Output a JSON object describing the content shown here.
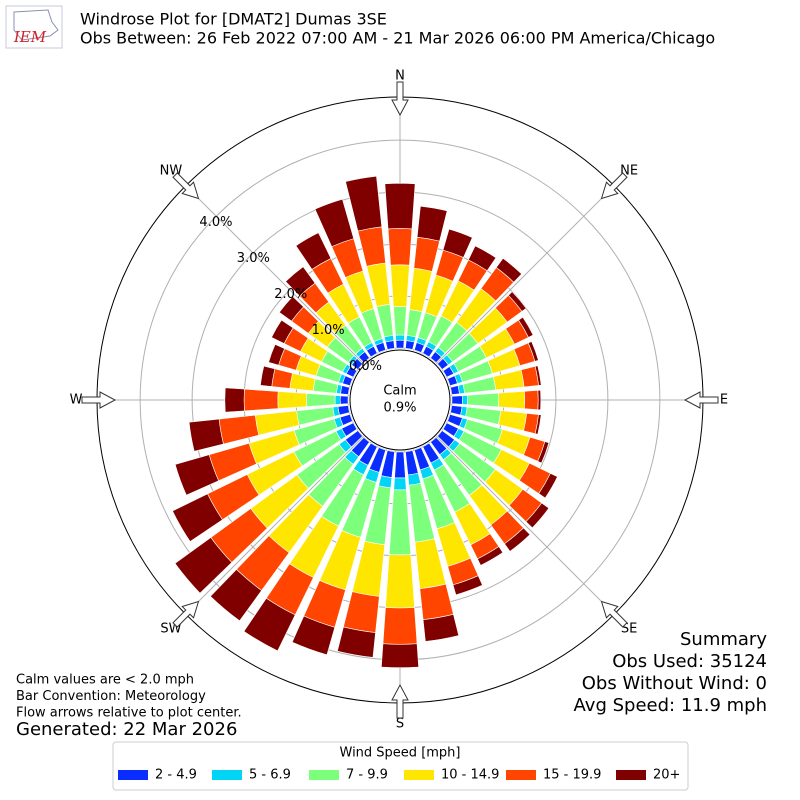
{
  "chart_data": {
    "type": "windrose",
    "logo_text": "IEM",
    "title": "Windrose Plot for [DMAT2] Dumas 3SE",
    "subtitle": "Obs Between: 26 Feb 2022 07:00 AM - 21 Mar 2026 06:00 PM America/Chicago",
    "x": [
      0,
      10,
      20,
      30,
      40,
      50,
      60,
      70,
      80,
      90,
      100,
      110,
      120,
      130,
      140,
      150,
      160,
      170,
      180,
      190,
      200,
      210,
      220,
      230,
      240,
      250,
      260,
      270,
      280,
      290,
      300,
      310,
      320,
      330,
      340,
      350
    ],
    "theta_ticks": [
      {
        "value": 0,
        "label": "N"
      },
      {
        "value": 45,
        "label": "NE"
      },
      {
        "value": 90,
        "label": "E"
      },
      {
        "value": 135,
        "label": "SE"
      },
      {
        "value": 180,
        "label": "S"
      },
      {
        "value": 225,
        "label": "SW"
      },
      {
        "value": 270,
        "label": "W"
      },
      {
        "value": 315,
        "label": "NW"
      }
    ],
    "rlim": [
      0,
      4.83
    ],
    "rticks": [
      {
        "value": 0,
        "label": "0.0%"
      },
      {
        "value": 1,
        "label": "1.0%"
      },
      {
        "value": 2,
        "label": "2.0%"
      },
      {
        "value": 3,
        "label": "3.0%"
      },
      {
        "value": 4,
        "label": "4.0%"
      }
    ],
    "calm": {
      "label": "Calm",
      "value": 0.9,
      "value_label": "0.9%"
    },
    "legend_title": "Wind Speed [mph]",
    "series": [
      {
        "name": "2 - 4.9",
        "color": "#0a2dff",
        "values": [
          0.15,
          0.15,
          0.15,
          0.15,
          0.15,
          0.15,
          0.15,
          0.15,
          0.15,
          0.2,
          0.2,
          0.25,
          0.25,
          0.3,
          0.3,
          0.35,
          0.4,
          0.45,
          0.5,
          0.5,
          0.45,
          0.4,
          0.35,
          0.3,
          0.25,
          0.2,
          0.2,
          0.15,
          0.15,
          0.15,
          0.15,
          0.15,
          0.15,
          0.15,
          0.15,
          0.15
        ]
      },
      {
        "name": "5 - 6.9",
        "color": "#00d5f5",
        "values": [
          0.1,
          0.1,
          0.1,
          0.1,
          0.1,
          0.1,
          0.1,
          0.1,
          0.1,
          0.1,
          0.1,
          0.1,
          0.12,
          0.12,
          0.12,
          0.15,
          0.18,
          0.2,
          0.23,
          0.2,
          0.2,
          0.2,
          0.18,
          0.15,
          0.12,
          0.12,
          0.1,
          0.1,
          0.08,
          0.08,
          0.08,
          0.08,
          0.08,
          0.08,
          0.08,
          0.1
        ]
      },
      {
        "name": "7 - 9.9",
        "color": "#7cff7a",
        "values": [
          0.55,
          0.5,
          0.5,
          0.55,
          0.6,
          0.6,
          0.6,
          0.6,
          0.6,
          0.6,
          0.65,
          0.7,
          0.8,
          0.85,
          0.85,
          0.9,
          1.0,
          1.1,
          1.25,
          1.1,
          1.1,
          1.1,
          1.0,
          1.0,
          0.9,
          0.8,
          0.7,
          0.55,
          0.45,
          0.45,
          0.45,
          0.5,
          0.55,
          0.55,
          0.6,
          0.6
        ]
      },
      {
        "name": "10 - 14.9",
        "color": "#ffe600",
        "values": [
          0.8,
          0.8,
          0.75,
          0.75,
          0.8,
          0.7,
          0.6,
          0.55,
          0.55,
          0.5,
          0.5,
          0.55,
          0.6,
          0.65,
          0.7,
          0.7,
          0.75,
          0.9,
          1.02,
          1.0,
          1.05,
          1.1,
          1.1,
          1.1,
          1.0,
          0.9,
          0.8,
          0.55,
          0.45,
          0.4,
          0.45,
          0.45,
          0.55,
          0.7,
          0.75,
          0.8
        ]
      },
      {
        "name": "15 - 19.9",
        "color": "#ff4500",
        "values": [
          0.7,
          0.6,
          0.5,
          0.45,
          0.5,
          0.35,
          0.3,
          0.3,
          0.28,
          0.26,
          0.23,
          0.3,
          0.45,
          0.45,
          0.45,
          0.3,
          0.37,
          0.6,
          0.7,
          0.7,
          0.75,
          0.8,
          0.9,
          0.95,
          0.85,
          0.8,
          0.7,
          0.65,
          0.35,
          0.35,
          0.35,
          0.4,
          0.45,
          0.55,
          0.65,
          0.7
        ]
      },
      {
        "name": "20+",
        "color": "#800000",
        "values": [
          0.87,
          0.6,
          0.42,
          0.3,
          0.22,
          0.1,
          0.1,
          0.07,
          0.05,
          0.05,
          0.05,
          0.08,
          0.15,
          0.17,
          0.18,
          0.14,
          0.2,
          0.42,
          0.45,
          0.48,
          0.55,
          0.77,
          0.72,
          0.85,
          0.75,
          0.68,
          0.58,
          0.37,
          0.22,
          0.2,
          0.27,
          0.29,
          0.39,
          0.55,
          0.79,
          0.98
        ]
      }
    ],
    "summary": [
      "Summary",
      "Obs Used: 35124",
      "Obs Without Wind: 0",
      "Avg Speed: 11.9 mph"
    ],
    "notes": [
      "Calm values are < 2.0 mph",
      "Bar Convention: Meteorology",
      "Flow arrows relative to plot center."
    ],
    "generated": "Generated: 22 Mar 2026"
  }
}
